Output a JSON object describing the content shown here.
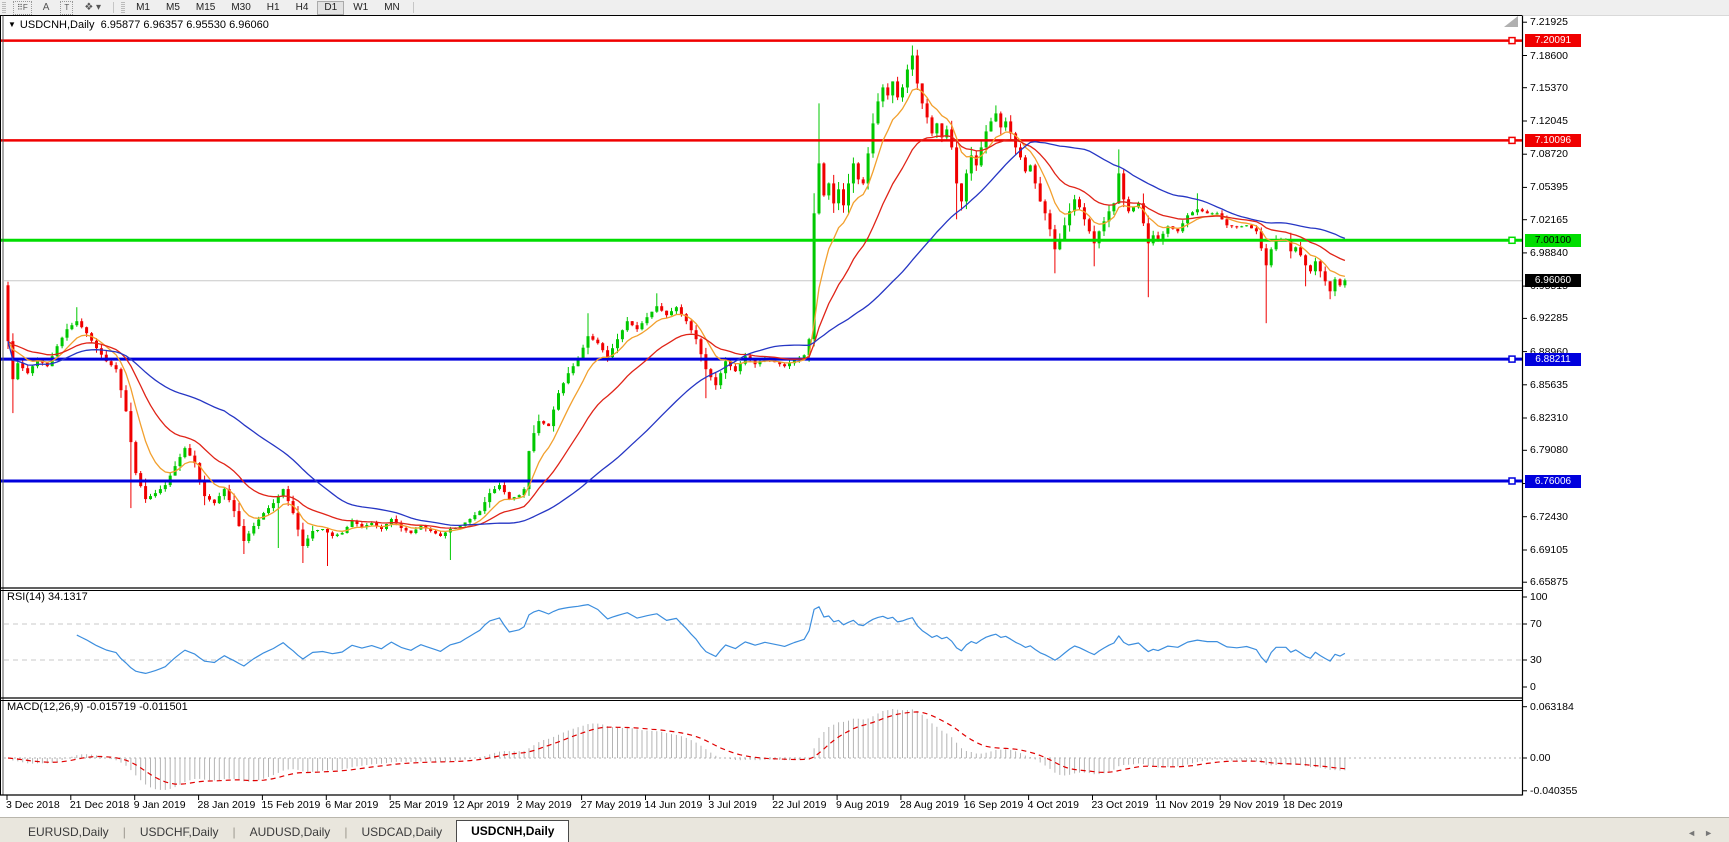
{
  "toolbar": {
    "icons": [
      {
        "name": "chart-grid-f-icon",
        "glyph": "⠿F",
        "boxed": true
      },
      {
        "name": "text-a-icon",
        "glyph": "A",
        "boxed": false
      },
      {
        "name": "text-t-icon",
        "glyph": "T",
        "boxed": true
      },
      {
        "name": "styles-icon",
        "glyph": "❖ ▾",
        "boxed": false
      }
    ],
    "timeframes": [
      "M1",
      "M5",
      "M15",
      "M30",
      "H1",
      "H4",
      "D1",
      "W1",
      "MN"
    ],
    "active_timeframe": "D1"
  },
  "chart": {
    "title_symbol": "USDCNH,Daily",
    "title_ohlc": "6.95877 6.96357 6.95530 6.96060"
  },
  "chart_data": {
    "type": "candlestick",
    "symbol": "USDCNH",
    "timeframe": "Daily",
    "ohlc_display": {
      "open": "6.95877",
      "high": "6.96357",
      "low": "6.95530",
      "close": "6.96060"
    },
    "bars_count": 273,
    "first_open": 6.956,
    "price_axis": {
      "max_visible": 7.2245,
      "min_visible": 6.6528,
      "ticks": [
        "7.21925",
        "7.18600",
        "7.15370",
        "7.12045",
        "7.08720",
        "7.05395",
        "7.02165",
        "6.98840",
        "6.95515",
        "6.92285",
        "6.88960",
        "6.85635",
        "6.82310",
        "6.79080",
        "6.75755",
        "6.72430",
        "6.69105",
        "6.65875"
      ]
    },
    "x_axis_dates": [
      "3 Dec 2018",
      "21 Dec 2018",
      "9 Jan 2019",
      "28 Jan 2019",
      "15 Feb 2019",
      "6 Mar 2019",
      "25 Mar 2019",
      "12 Apr 2019",
      "2 May 2019",
      "27 May 2019",
      "14 Jun 2019",
      "3 Jul 2019",
      "22 Jul 2019",
      "9 Aug 2019",
      "28 Aug 2019",
      "16 Sep 2019",
      "4 Oct 2019",
      "23 Oct 2019",
      "11 Nov 2019",
      "29 Nov 2019",
      "18 Dec 2019"
    ],
    "close_anchors": [
      [
        0,
        6.9
      ],
      [
        1,
        6.862
      ],
      [
        2,
        6.878
      ],
      [
        4,
        6.868
      ],
      [
        6,
        6.882
      ],
      [
        8,
        6.875
      ],
      [
        10,
        6.895
      ],
      [
        12,
        6.912
      ],
      [
        14,
        6.92
      ],
      [
        16,
        6.908
      ],
      [
        18,
        6.893
      ],
      [
        20,
        6.88
      ],
      [
        22,
        6.872
      ],
      [
        24,
        6.83
      ],
      [
        26,
        6.768
      ],
      [
        28,
        6.742
      ],
      [
        30,
        6.748
      ],
      [
        32,
        6.756
      ],
      [
        34,
        6.775
      ],
      [
        36,
        6.793
      ],
      [
        38,
        6.778
      ],
      [
        40,
        6.745
      ],
      [
        42,
        6.738
      ],
      [
        44,
        6.752
      ],
      [
        46,
        6.73
      ],
      [
        48,
        6.7
      ],
      [
        50,
        6.715
      ],
      [
        52,
        6.728
      ],
      [
        54,
        6.738
      ],
      [
        56,
        6.752
      ],
      [
        58,
        6.728
      ],
      [
        60,
        6.695
      ],
      [
        62,
        6.71
      ],
      [
        64,
        6.712
      ],
      [
        66,
        6.705
      ],
      [
        68,
        6.708
      ],
      [
        70,
        6.72
      ],
      [
        72,
        6.714
      ],
      [
        74,
        6.718
      ],
      [
        76,
        6.712
      ],
      [
        78,
        6.722
      ],
      [
        80,
        6.713
      ],
      [
        82,
        6.708
      ],
      [
        84,
        6.715
      ],
      [
        86,
        6.71
      ],
      [
        88,
        6.705
      ],
      [
        90,
        6.712
      ],
      [
        92,
        6.715
      ],
      [
        94,
        6.722
      ],
      [
        96,
        6.73
      ],
      [
        98,
        6.748
      ],
      [
        100,
        6.756
      ],
      [
        102,
        6.742
      ],
      [
        104,
        6.746
      ],
      [
        105,
        6.752
      ],
      [
        106,
        6.79
      ],
      [
        107,
        6.808
      ],
      [
        108,
        6.82
      ],
      [
        110,
        6.815
      ],
      [
        112,
        6.848
      ],
      [
        114,
        6.868
      ],
      [
        116,
        6.882
      ],
      [
        118,
        6.905
      ],
      [
        120,
        6.898
      ],
      [
        122,
        6.884
      ],
      [
        124,
        6.902
      ],
      [
        126,
        6.92
      ],
      [
        128,
        6.912
      ],
      [
        130,
        6.924
      ],
      [
        132,
        6.935
      ],
      [
        134,
        6.926
      ],
      [
        136,
        6.934
      ],
      [
        138,
        6.92
      ],
      [
        140,
        6.902
      ],
      [
        142,
        6.872
      ],
      [
        144,
        6.856
      ],
      [
        146,
        6.88
      ],
      [
        148,
        6.87
      ],
      [
        150,
        6.885
      ],
      [
        152,
        6.877
      ],
      [
        154,
        6.883
      ],
      [
        156,
        6.879
      ],
      [
        158,
        6.875
      ],
      [
        160,
        6.881
      ],
      [
        162,
        6.886
      ],
      [
        163,
        6.902
      ],
      [
        164,
        7.028
      ],
      [
        165,
        7.078
      ],
      [
        166,
        7.046
      ],
      [
        167,
        7.058
      ],
      [
        168,
        7.038
      ],
      [
        169,
        7.052
      ],
      [
        170,
        7.036
      ],
      [
        171,
        7.058
      ],
      [
        172,
        7.078
      ],
      [
        173,
        7.062
      ],
      [
        174,
        7.058
      ],
      [
        175,
        7.088
      ],
      [
        176,
        7.118
      ],
      [
        177,
        7.14
      ],
      [
        178,
        7.154
      ],
      [
        179,
        7.146
      ],
      [
        180,
        7.16
      ],
      [
        181,
        7.144
      ],
      [
        182,
        7.154
      ],
      [
        183,
        7.172
      ],
      [
        184,
        7.186
      ],
      [
        185,
        7.158
      ],
      [
        186,
        7.138
      ],
      [
        187,
        7.124
      ],
      [
        188,
        7.108
      ],
      [
        189,
        7.118
      ],
      [
        190,
        7.104
      ],
      [
        191,
        7.112
      ],
      [
        192,
        7.094
      ],
      [
        193,
        7.058
      ],
      [
        194,
        7.04
      ],
      [
        195,
        7.068
      ],
      [
        196,
        7.086
      ],
      [
        197,
        7.076
      ],
      [
        198,
        7.094
      ],
      [
        199,
        7.11
      ],
      [
        200,
        7.12
      ],
      [
        201,
        7.128
      ],
      [
        202,
        7.114
      ],
      [
        203,
        7.12
      ],
      [
        204,
        7.108
      ],
      [
        205,
        7.094
      ],
      [
        206,
        7.084
      ],
      [
        207,
        7.07
      ],
      [
        208,
        7.076
      ],
      [
        209,
        7.058
      ],
      [
        210,
        7.04
      ],
      [
        211,
        7.028
      ],
      [
        212,
        7.012
      ],
      [
        213,
        6.992
      ],
      [
        214,
        7.002
      ],
      [
        215,
        7.016
      ],
      [
        216,
        7.03
      ],
      [
        217,
        7.042
      ],
      [
        218,
        7.034
      ],
      [
        220,
        7.01
      ],
      [
        221,
        6.998
      ],
      [
        222,
        7.01
      ],
      [
        224,
        7.03
      ],
      [
        225,
        7.038
      ],
      [
        226,
        7.068
      ],
      [
        227,
        7.042
      ],
      [
        228,
        7.03
      ],
      [
        230,
        7.038
      ],
      [
        232,
        6.998
      ],
      [
        233,
        7.006
      ],
      [
        234,
        7.0
      ],
      [
        236,
        7.015
      ],
      [
        238,
        7.01
      ],
      [
        240,
        7.026
      ],
      [
        242,
        7.032
      ],
      [
        244,
        7.028
      ],
      [
        246,
        7.028
      ],
      [
        248,
        7.016
      ],
      [
        250,
        7.014
      ],
      [
        252,
        7.016
      ],
      [
        254,
        7.01
      ],
      [
        256,
        6.976
      ],
      [
        257,
        6.992
      ],
      [
        258,
        7.002
      ],
      [
        260,
        7.002
      ],
      [
        261,
        6.99
      ],
      [
        262,
        6.994
      ],
      [
        263,
        6.986
      ],
      [
        264,
        6.976
      ],
      [
        265,
        6.97
      ],
      [
        266,
        6.98
      ],
      [
        267,
        6.97
      ],
      [
        268,
        6.96
      ],
      [
        269,
        6.95
      ],
      [
        270,
        6.962
      ],
      [
        271,
        6.956
      ],
      [
        272,
        6.961
      ]
    ],
    "wick_lows": [
      [
        1,
        6.828
      ],
      [
        25,
        6.733
      ],
      [
        48,
        6.687
      ],
      [
        55,
        6.693
      ],
      [
        60,
        6.678
      ],
      [
        65,
        6.675
      ],
      [
        90,
        6.681
      ],
      [
        142,
        6.843
      ],
      [
        193,
        7.022
      ],
      [
        213,
        6.968
      ],
      [
        221,
        6.975
      ],
      [
        232,
        6.944
      ],
      [
        256,
        6.918
      ],
      [
        264,
        6.955
      ],
      [
        269,
        6.942
      ],
      [
        272,
        6.955
      ]
    ],
    "wick_highs": [
      [
        14,
        6.934
      ],
      [
        118,
        6.928
      ],
      [
        132,
        6.948
      ],
      [
        164,
        7.048
      ],
      [
        165,
        7.138
      ],
      [
        176,
        7.128
      ],
      [
        184,
        7.196
      ],
      [
        201,
        7.136
      ],
      [
        226,
        7.092
      ],
      [
        242,
        7.048
      ]
    ],
    "horizontal_lines": [
      {
        "price": 7.20091,
        "label": "7.20091",
        "color": "#f00000",
        "text_color": "#ffffff",
        "width": 2.5
      },
      {
        "price": 7.10096,
        "label": "7.10096",
        "color": "#f00000",
        "text_color": "#ffffff",
        "width": 2.5
      },
      {
        "price": 7.001,
        "label": "7.00100",
        "color": "#00dd00",
        "text_color": "#000000",
        "width": 3
      },
      {
        "price": 6.88211,
        "label": "6.88211",
        "color": "#0000dd",
        "text_color": "#ffffff",
        "width": 3
      },
      {
        "price": 6.76006,
        "label": "6.76006",
        "color": "#0000dd",
        "text_color": "#ffffff",
        "width": 3
      }
    ],
    "current_price": {
      "value": 6.9606,
      "label": "6.96060",
      "line_color": "#c8c8c8",
      "badge_color": "#000000",
      "text_color": "#ffffff"
    },
    "candle_up_color": "#00c800",
    "candle_down_color": "#f00000",
    "moving_averages": [
      {
        "name": "fast-ma",
        "period": 8,
        "color": "#f2a02e"
      },
      {
        "name": "mid-ma",
        "period": 21,
        "color": "#e02418"
      },
      {
        "name": "slow-ma",
        "period": 45,
        "color": "#2636c4"
      }
    ],
    "indicators": {
      "rsi": {
        "label": "RSI(14) 34.1317",
        "period": 14,
        "value": 34.1317,
        "range": [
          0,
          100
        ],
        "levels": [
          70,
          30
        ],
        "ticks": [
          {
            "label": "100",
            "value": 100
          },
          {
            "label": "70",
            "value": 70
          },
          {
            "label": "30",
            "value": 30
          },
          {
            "label": "0",
            "value": 0
          }
        ],
        "color": "#3c8ede",
        "level_color": "#c8c8c8"
      },
      "macd": {
        "label": "MACD(12,26,9) -0.015719 -0.011501",
        "params": [
          12,
          26,
          9
        ],
        "values": [
          -0.015719,
          -0.011501
        ],
        "ticks": [
          {
            "label": "0.063184",
            "value": 0.063184
          },
          {
            "label": "0.00",
            "value": 0
          },
          {
            "label": "-0.040355",
            "value": -0.040355
          }
        ],
        "hist_color": "#b4b4b4",
        "signal_color": "#e00000"
      }
    }
  },
  "tabs": {
    "items": [
      {
        "label": "EURUSD,Daily"
      },
      {
        "label": "USDCHF,Daily"
      },
      {
        "label": "AUDUSD,Daily"
      },
      {
        "label": "USDCAD,Daily"
      },
      {
        "label": "USDCNH,Daily"
      }
    ],
    "active_index": 4
  },
  "scroll": {
    "left": "◄",
    "right": "►"
  }
}
